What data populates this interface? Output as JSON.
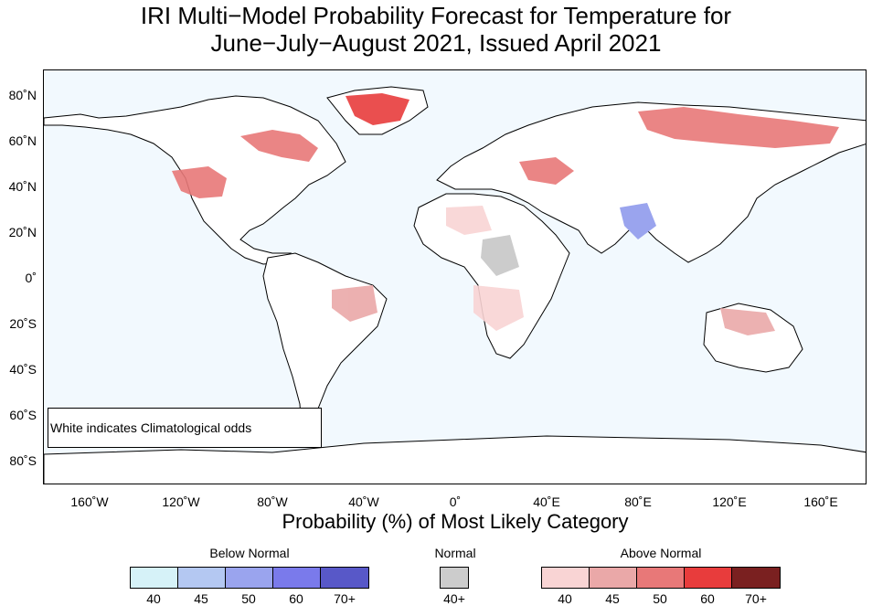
{
  "title": {
    "line1": "IRI Multi−Model Probability Forecast for Temperature for",
    "line2": "June−July−August 2021, Issued April 2021"
  },
  "map": {
    "note": "White indicates Climatological odds",
    "y_ticks": [
      "80˚N",
      "60˚N",
      "40˚N",
      "20˚N",
      "0˚",
      "20˚S",
      "40˚S",
      "60˚S",
      "80˚S"
    ],
    "x_ticks": [
      "160˚W",
      "120˚W",
      "80˚W",
      "40˚W",
      "0˚",
      "40˚E",
      "80˚E",
      "120˚E",
      "160˚E"
    ],
    "ocean_color": "#f2f9fe",
    "land_color": "#ffffff"
  },
  "x_axis_title": "Probability (%) of Most Likely Category",
  "legend": {
    "below_normal": {
      "title": "Below Normal",
      "labels": [
        "40",
        "45",
        "50",
        "60",
        "70+"
      ],
      "colors": [
        "#d6f2f8",
        "#b4c8f2",
        "#9aa4ee",
        "#7a7aeb",
        "#5858c8"
      ]
    },
    "normal": {
      "title": "Normal",
      "labels": [
        "40+"
      ],
      "colors": [
        "#cccccc"
      ]
    },
    "above_normal": {
      "title": "Above Normal",
      "labels": [
        "40",
        "45",
        "50",
        "60",
        "70+"
      ],
      "colors": [
        "#f9d4d4",
        "#eaa8a8",
        "#e87878",
        "#e83c3c",
        "#7a2020"
      ]
    }
  }
}
